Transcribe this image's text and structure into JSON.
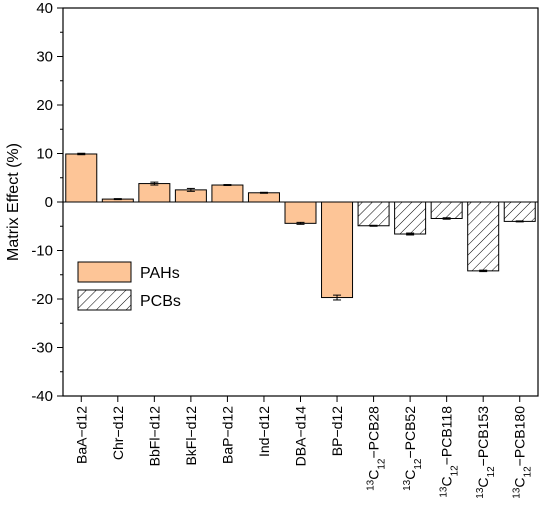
{
  "chart_data": {
    "type": "bar",
    "ylabel": "Matrix Effect (%)",
    "ylim": [
      -40,
      40
    ],
    "yticks": [
      40,
      30,
      20,
      10,
      0,
      -10,
      -20,
      -30,
      -40
    ],
    "grid": false,
    "legend_position": "left-lower",
    "categories": [
      {
        "prefix": "",
        "sup": "",
        "sub": "",
        "rest": "BaA−d12"
      },
      {
        "prefix": "",
        "sup": "",
        "sub": "",
        "rest": "Chr−d12"
      },
      {
        "prefix": "",
        "sup": "",
        "sub": "",
        "rest": "BbFl−d12"
      },
      {
        "prefix": "",
        "sup": "",
        "sub": "",
        "rest": "BkFl−d12"
      },
      {
        "prefix": "",
        "sup": "",
        "sub": "",
        "rest": "BaP−d12"
      },
      {
        "prefix": "",
        "sup": "",
        "sub": "",
        "rest": "Ind−d12"
      },
      {
        "prefix": "",
        "sup": "",
        "sub": "",
        "rest": "DBA−d14"
      },
      {
        "prefix": "",
        "sup": "",
        "sub": "",
        "rest": "BP−d12"
      },
      {
        "prefix": "",
        "sup": "13",
        "sub": "12",
        "rest": "−PCB28"
      },
      {
        "prefix": "",
        "sup": "13",
        "sub": "12",
        "rest": "−PCB52"
      },
      {
        "prefix": "",
        "sup": "13",
        "sub": "12",
        "rest": "−PCB118"
      },
      {
        "prefix": "",
        "sup": "13",
        "sub": "12",
        "rest": "−PCB153"
      },
      {
        "prefix": "",
        "sup": "13",
        "sub": "12",
        "rest": "−PCB180"
      }
    ],
    "series": [
      {
        "name": "PAHs",
        "color": "#fdc597",
        "pattern": "solid",
        "values": [
          9.9,
          0.6,
          3.8,
          2.5,
          3.5,
          1.9,
          -4.4,
          -19.7,
          null,
          null,
          null,
          null,
          null
        ],
        "errors": [
          0.15,
          0.1,
          0.3,
          0.3,
          0.1,
          0.1,
          0.2,
          0.5,
          null,
          null,
          null,
          null,
          null
        ]
      },
      {
        "name": "PCBs",
        "color": "#ffffff",
        "pattern": "hatch",
        "values": [
          null,
          null,
          null,
          null,
          null,
          null,
          null,
          null,
          -4.9,
          -6.6,
          -3.4,
          -14.2,
          -4.0
        ],
        "errors": [
          null,
          null,
          null,
          null,
          null,
          null,
          null,
          null,
          0.1,
          0.2,
          0.15,
          0.15,
          0.1
        ]
      }
    ]
  }
}
